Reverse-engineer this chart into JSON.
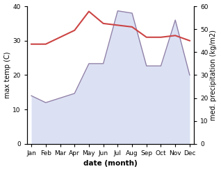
{
  "months": [
    "Jan",
    "Feb",
    "Mar",
    "Apr",
    "May",
    "Jun",
    "Jul",
    "Aug",
    "Sep",
    "Oct",
    "Nov",
    "Dec"
  ],
  "month_indices": [
    0,
    1,
    2,
    3,
    4,
    5,
    6,
    7,
    8,
    9,
    10,
    11
  ],
  "temp_max": [
    29,
    29,
    31,
    33,
    38.5,
    35,
    34.5,
    34,
    31,
    31,
    31.5,
    30
  ],
  "precip": [
    21,
    18,
    20,
    22,
    35,
    35,
    58,
    57,
    34,
    34,
    54,
    30
  ],
  "temp_color": "#cc4444",
  "precip_fill_color": "#b8c4e8",
  "precip_line_color": "#9080a8",
  "temp_ylim": [
    0,
    40
  ],
  "precip_ylim": [
    0,
    60
  ],
  "xlabel": "date (month)",
  "ylabel_left": "max temp (C)",
  "ylabel_right": "med. precipitation (kg/m2)",
  "bg_color": "#ffffff",
  "label_fontsize": 7,
  "tick_fontsize": 6.5
}
